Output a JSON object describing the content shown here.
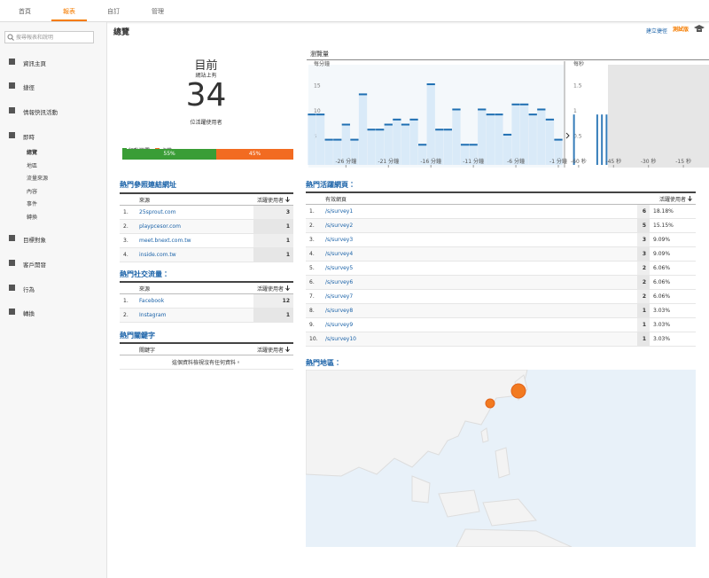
{
  "top_nav": {
    "tabs": [
      "首頁",
      "報表",
      "自訂",
      "管理"
    ]
  },
  "sidebar": {
    "search_placeholder": "搜尋報表和說明",
    "items": [
      "資訊主頁",
      "捷徑",
      "情報快訊活動",
      "即時"
    ],
    "realtime_items": [
      "總覽",
      "地區",
      "流量來源",
      "內容",
      "事件",
      "轉換"
    ],
    "more_items": [
      "目標對象",
      "客戶開發",
      "行為",
      "轉換"
    ]
  },
  "header": {
    "title": "總覽",
    "shortcut": "建立捷徑",
    "beta": "測試版"
  },
  "active_users": {
    "title": "目前",
    "subtitle": "網站上有",
    "count": 34,
    "caption": "位活躍使用者",
    "devices": [
      {
        "name": "行動裝置",
        "color": "#3a9d36",
        "value": 55,
        "label": "55%"
      },
      {
        "name": "桌機",
        "color": "#f26b21",
        "value": 45,
        "label": "45%"
      }
    ]
  },
  "pageviews": {
    "title": "瀏覽量",
    "per_minute": {
      "type": "bar",
      "label": "每分鐘",
      "color": "#1f6fb2",
      "x": [
        -30,
        -29,
        -28,
        -27,
        -26,
        -25,
        -24,
        -23,
        -22,
        -21,
        -20,
        -19,
        -18,
        -17,
        -16,
        -15,
        -14,
        -13,
        -12,
        -11,
        -10,
        -9,
        -8,
        -7,
        -6,
        -5,
        -4,
        -3,
        -2,
        -1
      ],
      "values": [
        10,
        10,
        5,
        5,
        8,
        5,
        14,
        7,
        7,
        8,
        9,
        8,
        9,
        4,
        16,
        7,
        7,
        11,
        4,
        4,
        11,
        10,
        10,
        6,
        12,
        12,
        10,
        11,
        9,
        5
      ],
      "xlim": [
        -30,
        -1
      ],
      "ylim": [
        0,
        19
      ],
      "yticks": [
        5,
        10,
        15
      ],
      "xticks": [
        {
          "value": -26,
          "label": "-26 分鐘"
        },
        {
          "value": -21,
          "label": "-21 分鐘"
        },
        {
          "value": -16,
          "label": "-16 分鐘"
        },
        {
          "value": -11,
          "label": "-11 分鐘"
        },
        {
          "value": -6,
          "label": "-6 分鐘"
        },
        {
          "value": -1,
          "label": "-1 分鐘"
        }
      ]
    },
    "per_second": {
      "type": "bar",
      "label": "每秒",
      "color": "#1f6fb2",
      "x": [
        -62,
        -52,
        -50,
        -48
      ],
      "values": [
        1,
        1,
        1,
        1
      ],
      "xlim": [
        -63,
        -4
      ],
      "ylim": [
        0,
        1.9
      ],
      "yticks": [
        0.5,
        1,
        1.5
      ],
      "xticks": [
        {
          "value": -60,
          "label": "-60 秒"
        },
        {
          "value": -45,
          "label": "-45 秒"
        },
        {
          "value": -30,
          "label": "-30 秒"
        },
        {
          "value": -15,
          "label": "-15 秒"
        }
      ]
    }
  },
  "referrals": {
    "title": "熱門參照連結網址",
    "columns": [
      "來源",
      "活躍使用者"
    ],
    "rows": [
      {
        "rank": "1.",
        "name": "25sprout.com",
        "users": 3
      },
      {
        "rank": "2.",
        "name": "playpcesor.com",
        "users": 1
      },
      {
        "rank": "3.",
        "name": "meet.bnext.com.tw",
        "users": 1
      },
      {
        "rank": "4.",
        "name": "inside.com.tw",
        "users": 1
      }
    ]
  },
  "social": {
    "title": "熱門社交流量：",
    "columns": [
      "來源",
      "活躍使用者"
    ],
    "rows": [
      {
        "rank": "1.",
        "name": "Facebook",
        "users": 12
      },
      {
        "rank": "2.",
        "name": "Instagram",
        "users": 1
      }
    ]
  },
  "keywords": {
    "title": "熱門關鍵字",
    "columns": [
      "關鍵字",
      "活躍使用者"
    ],
    "empty": "這個資料檢視沒有任何資料。"
  },
  "pages": {
    "title": "熱門活躍網頁：",
    "columns": [
      "有效網頁",
      "活躍使用者"
    ],
    "rows": [
      {
        "rank": "1.",
        "name": "/s/survey1",
        "users": 6,
        "share": "18.18%"
      },
      {
        "rank": "2.",
        "name": "/s/survey2",
        "users": 5,
        "share": "15.15%"
      },
      {
        "rank": "3.",
        "name": "/s/survey3",
        "users": 3,
        "share": "9.09%"
      },
      {
        "rank": "4.",
        "name": "/s/survey4",
        "users": 3,
        "share": "9.09%"
      },
      {
        "rank": "5.",
        "name": "/s/survey5",
        "users": 2,
        "share": "6.06%"
      },
      {
        "rank": "6.",
        "name": "/s/survey6",
        "users": 2,
        "share": "6.06%"
      },
      {
        "rank": "7.",
        "name": "/s/survey7",
        "users": 2,
        "share": "6.06%"
      },
      {
        "rank": "8.",
        "name": "/s/survey8",
        "users": 1,
        "share": "3.03%"
      },
      {
        "rank": "9.",
        "name": "/s/survey9",
        "users": 1,
        "share": "3.03%"
      },
      {
        "rank": "10.",
        "name": "/s/survey10",
        "users": 1,
        "share": "3.03%"
      }
    ]
  },
  "locations": {
    "title": "熱門地區："
  }
}
